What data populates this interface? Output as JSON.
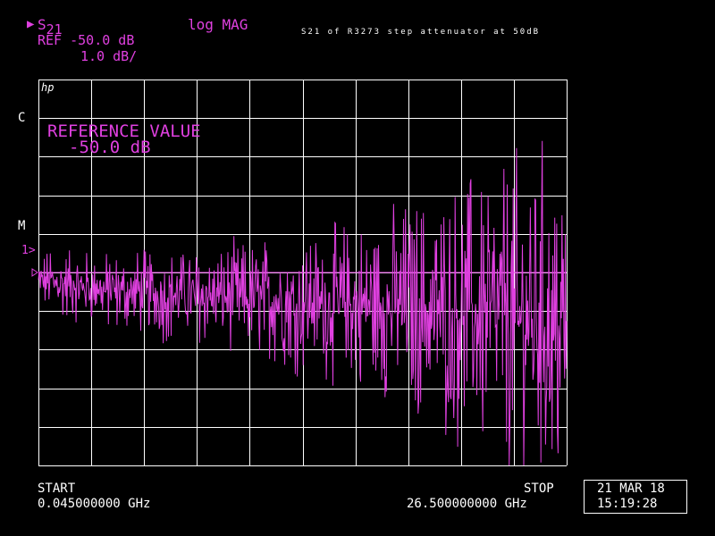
{
  "header": {
    "marker": "▶",
    "param": "S",
    "param_sub": "21",
    "format": "log MAG",
    "ref": "REF -50.0 dB",
    "scale": "1.0 dB/",
    "title": "S21 of R3273 step attenuator at 50dB"
  },
  "annotations": {
    "hp_logo": "hp",
    "c_label": "C",
    "m_label": "M",
    "ref_marker": "1>",
    "ref_value_title": "REFERENCE VALUE",
    "ref_value": "-50.0 dB"
  },
  "footer": {
    "start_label": "START",
    "start_value": "0.045000000 GHz",
    "stop_label": "STOP",
    "stop_value": "26.500000000 GHz",
    "date": "21 MAR 18",
    "time": "15:19:28"
  },
  "colors": {
    "trace": "#e040e0",
    "grid": "#ffffff",
    "background": "#000000"
  },
  "chart_data": {
    "type": "line",
    "title": "S21 of R3273 step attenuator at 50dB",
    "xlabel": "",
    "ylabel": "",
    "x_start_ghz": 0.045,
    "x_stop_ghz": 26.5,
    "reference_db": -50.0,
    "scale_db_per_div": 1.0,
    "divisions_x": 10,
    "divisions_y": 10,
    "reference_division_from_top": 5,
    "ylim": [
      -55.0,
      -45.0
    ],
    "xlim": [
      0.045,
      26.5
    ],
    "grid": true,
    "series": [
      {
        "x": [
          0.045,
          1.4,
          2.7,
          4.0,
          5.3,
          6.7,
          8.0,
          9.3,
          10.6,
          11.9,
          13.3,
          14.6,
          15.9,
          17.2,
          18.5,
          19.9,
          21.2,
          22.5,
          23.8,
          25.2,
          26.5
        ],
        "y": [
          -50.2,
          -50.3,
          -50.4,
          -50.5,
          -50.5,
          -50.6,
          -50.6,
          -50.6,
          -50.7,
          -50.7,
          -50.8,
          -50.8,
          -50.8,
          -50.9,
          -50.9,
          -51.0,
          -51.0,
          -51.1,
          -51.2,
          -51.3,
          -51.5
        ],
        "spread_db": [
          0.6,
          0.7,
          0.7,
          0.8,
          0.8,
          0.9,
          0.9,
          1.0,
          1.1,
          1.2,
          1.3,
          1.4,
          1.6,
          1.8,
          2.0,
          2.3,
          2.5,
          2.8,
          3.0,
          3.3,
          3.6
        ]
      }
    ]
  }
}
